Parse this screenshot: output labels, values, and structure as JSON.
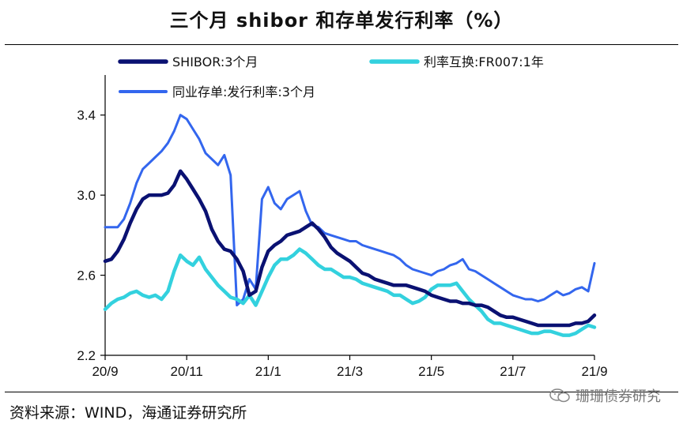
{
  "header": {
    "title": "三个月 shibor 和存单发行利率（%）"
  },
  "footer": {
    "source": "资料来源：WIND，海通证券研究所",
    "watermark": "珊珊债券研究"
  },
  "chart_data": {
    "type": "line",
    "title": "三个月 shibor 和存单发行利率（%）",
    "ylim": [
      2.2,
      3.6
    ],
    "yticks": [
      "3.4",
      "3.0",
      "2.6",
      "2.2"
    ],
    "xticks": [
      "20/9",
      "20/11",
      "21/1",
      "21/3",
      "21/5",
      "21/7",
      "21/9"
    ],
    "grid": false,
    "legend": "top",
    "series": [
      {
        "name": "SHIBOR:3个月",
        "color": "#0a1172",
        "values": [
          2.67,
          2.68,
          2.72,
          2.78,
          2.86,
          2.93,
          2.98,
          3.0,
          3.0,
          3.0,
          3.01,
          3.05,
          3.12,
          3.08,
          3.03,
          2.98,
          2.92,
          2.83,
          2.77,
          2.73,
          2.72,
          2.68,
          2.62,
          2.5,
          2.52,
          2.64,
          2.72,
          2.75,
          2.77,
          2.8,
          2.81,
          2.82,
          2.84,
          2.86,
          2.83,
          2.79,
          2.74,
          2.71,
          2.69,
          2.67,
          2.64,
          2.61,
          2.6,
          2.58,
          2.57,
          2.56,
          2.55,
          2.55,
          2.55,
          2.54,
          2.53,
          2.52,
          2.5,
          2.49,
          2.48,
          2.47,
          2.47,
          2.46,
          2.46,
          2.45,
          2.45,
          2.44,
          2.42,
          2.4,
          2.39,
          2.39,
          2.38,
          2.37,
          2.36,
          2.35,
          2.35,
          2.35,
          2.35,
          2.35,
          2.35,
          2.36,
          2.36,
          2.37,
          2.4
        ]
      },
      {
        "name": "利率互换:FR007:1年",
        "color": "#33d1de",
        "values": [
          2.43,
          2.46,
          2.48,
          2.49,
          2.51,
          2.52,
          2.5,
          2.49,
          2.5,
          2.48,
          2.52,
          2.62,
          2.7,
          2.67,
          2.65,
          2.69,
          2.63,
          2.59,
          2.55,
          2.52,
          2.49,
          2.48,
          2.46,
          2.5,
          2.45,
          2.52,
          2.59,
          2.65,
          2.68,
          2.68,
          2.7,
          2.73,
          2.71,
          2.68,
          2.65,
          2.63,
          2.63,
          2.61,
          2.59,
          2.59,
          2.58,
          2.56,
          2.55,
          2.54,
          2.53,
          2.52,
          2.5,
          2.5,
          2.48,
          2.46,
          2.47,
          2.49,
          2.53,
          2.55,
          2.55,
          2.55,
          2.56,
          2.52,
          2.48,
          2.45,
          2.42,
          2.38,
          2.36,
          2.36,
          2.35,
          2.34,
          2.33,
          2.32,
          2.31,
          2.31,
          2.32,
          2.32,
          2.31,
          2.3,
          2.3,
          2.31,
          2.33,
          2.35,
          2.34
        ]
      },
      {
        "name": "同业存单:发行利率:3个月",
        "color": "#3366ee",
        "values": [
          2.84,
          2.84,
          2.84,
          2.88,
          2.96,
          3.06,
          3.13,
          3.16,
          3.19,
          3.22,
          3.26,
          3.32,
          3.4,
          3.38,
          3.33,
          3.28,
          3.21,
          3.18,
          3.15,
          3.2,
          3.1,
          2.45,
          2.48,
          2.58,
          2.53,
          2.98,
          3.04,
          2.96,
          2.93,
          2.98,
          3.0,
          3.02,
          2.92,
          2.85,
          2.84,
          2.81,
          2.8,
          2.79,
          2.78,
          2.77,
          2.77,
          2.75,
          2.74,
          2.73,
          2.72,
          2.71,
          2.7,
          2.68,
          2.65,
          2.63,
          2.62,
          2.61,
          2.6,
          2.62,
          2.63,
          2.65,
          2.66,
          2.68,
          2.63,
          2.62,
          2.6,
          2.58,
          2.56,
          2.54,
          2.52,
          2.5,
          2.49,
          2.48,
          2.48,
          2.47,
          2.48,
          2.5,
          2.52,
          2.5,
          2.51,
          2.53,
          2.54,
          2.52,
          2.66
        ]
      }
    ]
  }
}
